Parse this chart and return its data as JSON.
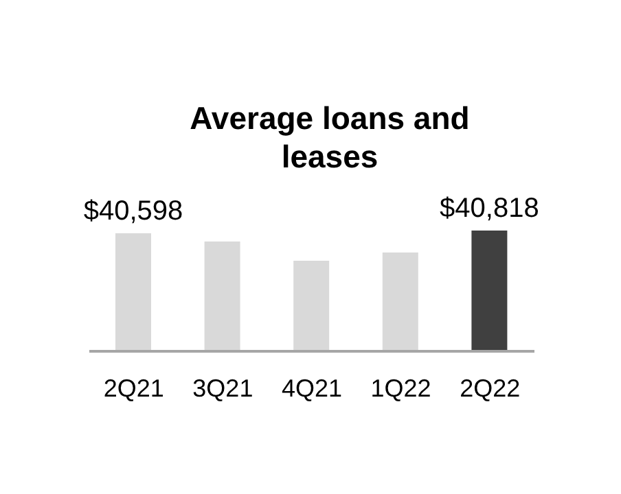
{
  "chart_data": {
    "type": "bar",
    "title": "Average loans and leases",
    "categories": [
      "2Q21",
      "3Q21",
      "4Q21",
      "1Q22",
      "2Q22"
    ],
    "values": [
      40598,
      39930,
      38370,
      39040,
      40818
    ],
    "colors": [
      "#d9d9d9",
      "#d9d9d9",
      "#d9d9d9",
      "#d9d9d9",
      "#404040"
    ],
    "value_labels": [
      "$40,598",
      null,
      null,
      null,
      "$40,818"
    ],
    "ylim": [
      31000,
      41000
    ],
    "tick_labels": "x",
    "grid": false,
    "legend": false
  }
}
